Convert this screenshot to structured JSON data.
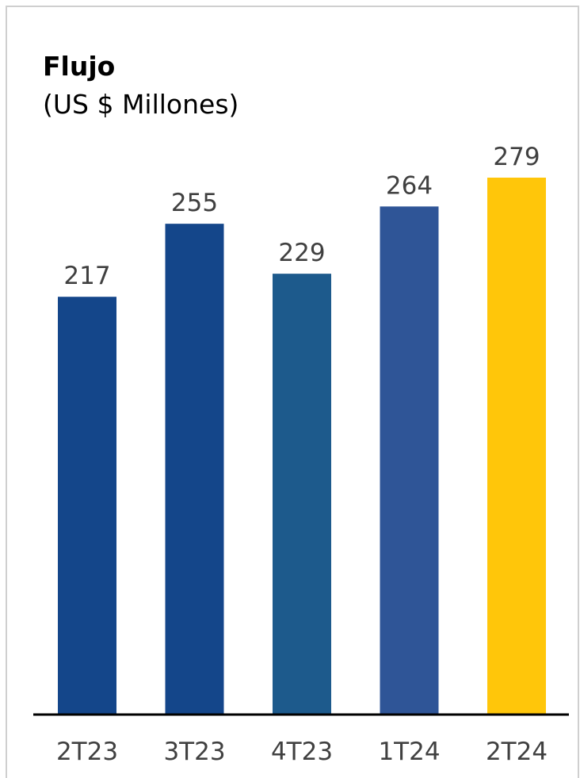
{
  "chart_data": {
    "type": "bar",
    "title": "Flujo",
    "subtitle": "(US $ Millones)",
    "categories": [
      "2T23",
      "3T23",
      "4T23",
      "1T24",
      "2T24"
    ],
    "values": [
      217,
      255,
      229,
      264,
      279
    ],
    "colors": [
      "#14468a",
      "#14468a",
      "#1d5a8c",
      "#2f5597",
      "#ffc60a"
    ],
    "ylim": [
      0,
      279
    ],
    "grid": false,
    "legend": "none",
    "axis_color": "#000000",
    "label_color": "#404040"
  }
}
